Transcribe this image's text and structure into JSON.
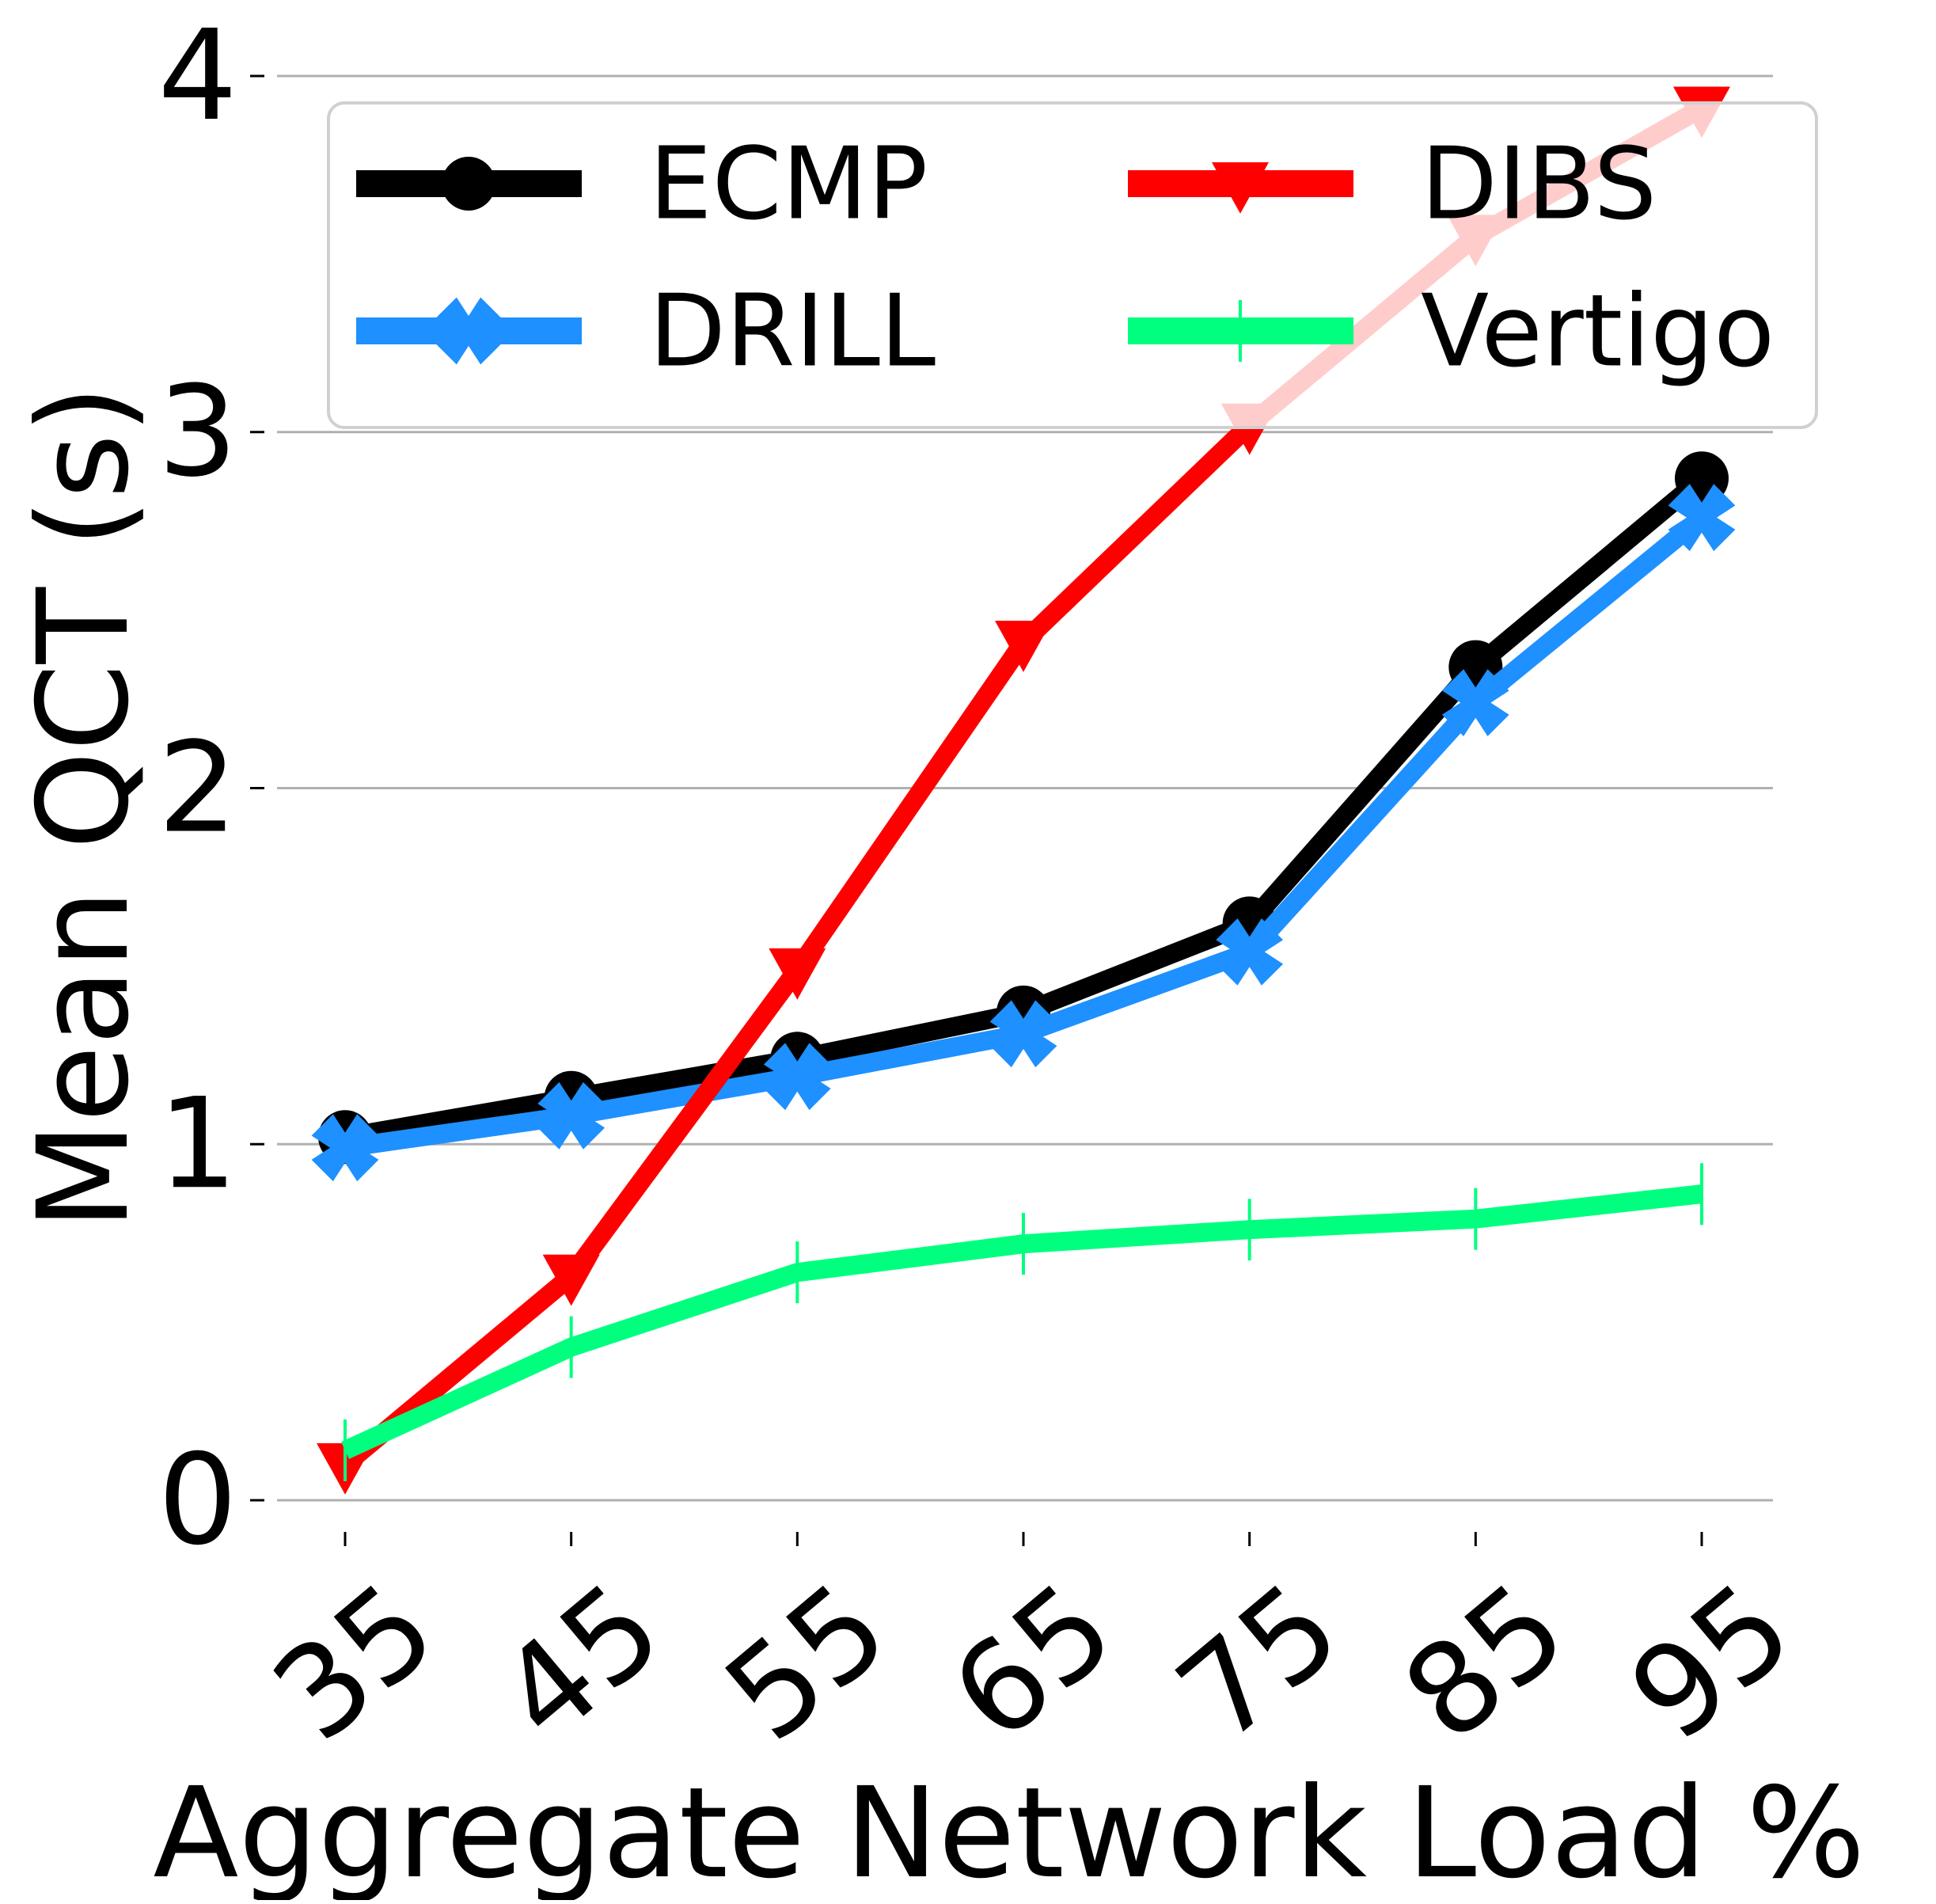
{
  "chart_data": {
    "type": "line",
    "title": "",
    "xlabel": "Aggregate Network Load %",
    "ylabel": "Mean QCT (s)",
    "categories": [
      "35",
      "45",
      "55",
      "65",
      "75",
      "85",
      "95"
    ],
    "ylim": [
      0,
      4
    ],
    "yticks": [
      "0",
      "1",
      "2",
      "3",
      "4"
    ],
    "grid": "horizontal",
    "legend_position": "top-right",
    "series": [
      {
        "name": "ECMP",
        "marker": "circle",
        "color": "#000000",
        "values": [
          1.02,
          1.13,
          1.24,
          1.37,
          1.62,
          2.34,
          2.87
        ]
      },
      {
        "name": "DRILL",
        "marker": "x",
        "color": "#1e90ff",
        "values": [
          0.99,
          1.08,
          1.19,
          1.31,
          1.54,
          2.24,
          2.76
        ]
      },
      {
        "name": "DIBS",
        "marker": "triangle-down",
        "color": "#ff0000",
        "values": [
          0.1,
          0.63,
          1.49,
          2.41,
          3.02,
          3.55,
          3.91
        ]
      },
      {
        "name": "Vertigo",
        "marker": "vline",
        "color": "#00ff7f",
        "values": [
          0.14,
          0.43,
          0.64,
          0.72,
          0.76,
          0.79,
          0.86
        ]
      }
    ]
  }
}
